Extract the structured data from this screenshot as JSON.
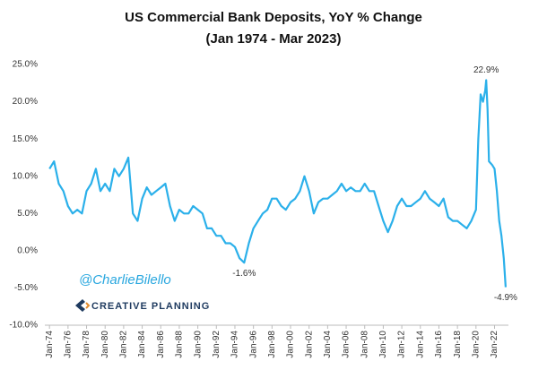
{
  "chart_data": {
    "type": "line",
    "title": "US Commercial Bank Deposits, YoY % Change",
    "subtitle": "(Jan 1974 - Mar 2023)",
    "color": "#2bb0ea",
    "x": [
      1974,
      1974.5,
      1975,
      1975.5,
      1976,
      1976.5,
      1977,
      1977.5,
      1978,
      1978.5,
      1979,
      1979.5,
      1980,
      1980.5,
      1981,
      1981.5,
      1982,
      1982.5,
      1983,
      1983.5,
      1984,
      1984.5,
      1985,
      1985.5,
      1986,
      1986.5,
      1987,
      1987.5,
      1988,
      1988.5,
      1989,
      1989.5,
      1990,
      1990.5,
      1991,
      1991.5,
      1992,
      1992.5,
      1993,
      1993.5,
      1994,
      1994.5,
      1995,
      1995.5,
      1996,
      1996.5,
      1997,
      1997.5,
      1998,
      1998.5,
      1999,
      1999.5,
      2000,
      2000.5,
      2001,
      2001.5,
      2002,
      2002.5,
      2003,
      2003.5,
      2004,
      2004.5,
      2005,
      2005.5,
      2006,
      2006.5,
      2007,
      2007.5,
      2008,
      2008.5,
      2009,
      2009.5,
      2010,
      2010.5,
      2011,
      2011.5,
      2012,
      2012.5,
      2013,
      2013.5,
      2014,
      2014.5,
      2015,
      2015.5,
      2016,
      2016.5,
      2017,
      2017.5,
      2018,
      2018.5,
      2019,
      2019.5,
      2020,
      2020.25,
      2020.5,
      2020.75,
      2021,
      2021.1,
      2021.25,
      2021.4,
      2021.75,
      2022,
      2022.25,
      2022.5,
      2022.75,
      2023,
      2023.2
    ],
    "values": [
      11,
      12,
      9,
      8,
      6,
      5,
      5.5,
      5,
      8,
      9,
      11,
      8,
      9,
      8,
      11,
      10,
      11,
      12.5,
      5,
      4,
      7,
      8.5,
      7.5,
      8,
      8.5,
      9,
      6,
      4,
      5.5,
      5,
      5,
      6,
      5.5,
      5,
      3,
      3,
      2,
      2,
      1,
      1,
      0.5,
      -1,
      -1.6,
      1,
      3,
      4,
      5,
      5.5,
      7,
      7,
      6,
      5.5,
      6.5,
      7,
      8,
      10,
      8,
      5,
      6.5,
      7,
      7,
      7.5,
      8,
      9,
      8,
      8.5,
      8,
      8,
      9,
      8,
      8,
      6,
      4,
      2.5,
      4,
      6,
      7,
      6,
      6,
      6.5,
      7,
      8,
      7,
      6.5,
      6,
      7,
      4.5,
      4,
      4,
      3.5,
      3,
      4,
      5.5,
      15,
      21,
      20,
      21.5,
      22.9,
      19,
      12,
      11.5,
      11,
      8,
      4,
      2,
      -1,
      -4.9
    ],
    "value_labels": [
      null,
      null,
      null,
      null,
      null,
      null,
      null,
      null,
      null,
      null,
      null,
      null,
      null,
      null,
      null,
      null,
      null,
      null,
      null,
      null,
      null,
      null,
      null,
      null,
      null,
      null,
      null,
      null,
      null,
      null,
      null,
      null,
      null,
      null,
      null,
      null,
      null,
      null,
      null,
      null,
      null,
      null,
      "-1.6%",
      null,
      null,
      null,
      null,
      null,
      null,
      null,
      null,
      null,
      null,
      null,
      null,
      null,
      null,
      null,
      null,
      null,
      null,
      null,
      null,
      null,
      null,
      null,
      null,
      null,
      null,
      null,
      null,
      null,
      null,
      null,
      null,
      null,
      null,
      null,
      null,
      null,
      null,
      null,
      null,
      null,
      null,
      null,
      null,
      null,
      null,
      null,
      null,
      null,
      null,
      null,
      null,
      null,
      null,
      "22.9%",
      null,
      null,
      null,
      null,
      null,
      null,
      null,
      null,
      "-4.9%"
    ],
    "xlim": [
      1973.5,
      2023.5
    ],
    "xticks": [
      {
        "value": 1974,
        "label": "Jan-74"
      },
      {
        "value": 1976,
        "label": "Jan-76"
      },
      {
        "value": 1978,
        "label": "Jan-78"
      },
      {
        "value": 1980,
        "label": "Jan-80"
      },
      {
        "value": 1982,
        "label": "Jan-82"
      },
      {
        "value": 1984,
        "label": "Jan-84"
      },
      {
        "value": 1986,
        "label": "Jan-86"
      },
      {
        "value": 1988,
        "label": "Jan-88"
      },
      {
        "value": 1990,
        "label": "Jan-90"
      },
      {
        "value": 1992,
        "label": "Jan-92"
      },
      {
        "value": 1994,
        "label": "Jan-94"
      },
      {
        "value": 1996,
        "label": "Jan-96"
      },
      {
        "value": 1998,
        "label": "Jan-98"
      },
      {
        "value": 2000,
        "label": "Jan-00"
      },
      {
        "value": 2002,
        "label": "Jan-02"
      },
      {
        "value": 2004,
        "label": "Jan-04"
      },
      {
        "value": 2006,
        "label": "Jan-06"
      },
      {
        "value": 2008,
        "label": "Jan-08"
      },
      {
        "value": 2010,
        "label": "Jan-10"
      },
      {
        "value": 2012,
        "label": "Jan-12"
      },
      {
        "value": 2014,
        "label": "Jan-14"
      },
      {
        "value": 2016,
        "label": "Jan-16"
      },
      {
        "value": 2018,
        "label": "Jan-18"
      },
      {
        "value": 2020,
        "label": "Jan-20"
      },
      {
        "value": 2022,
        "label": "Jan-22"
      }
    ],
    "ylim": [
      -10,
      25
    ],
    "yticks": [
      {
        "value": -10,
        "label": "-10.0%"
      },
      {
        "value": -5,
        "label": "-5.0%"
      },
      {
        "value": 0,
        "label": "0.0%"
      },
      {
        "value": 5,
        "label": "5.0%"
      },
      {
        "value": 10,
        "label": "10.0%"
      },
      {
        "value": 15,
        "label": "15.0%"
      },
      {
        "value": 20,
        "label": "20.0%"
      },
      {
        "value": 25,
        "label": "25.0%"
      }
    ],
    "grid": false
  },
  "watermark": {
    "handle": "@CharlieBilello",
    "brand": "CREATIVE PLANNING"
  }
}
